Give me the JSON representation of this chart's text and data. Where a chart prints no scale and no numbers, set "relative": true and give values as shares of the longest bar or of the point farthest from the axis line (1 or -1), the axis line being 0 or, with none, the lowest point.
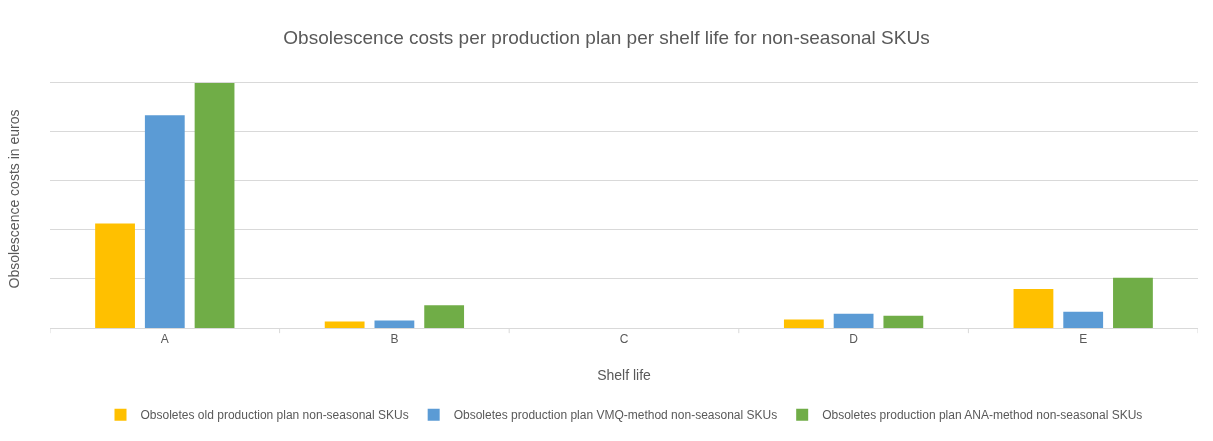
{
  "chart_data": {
    "type": "bar",
    "relative": true,
    "title": "Obsolescence costs per production plan per shelf life for non-seasonal SKUs",
    "xlabel": "Shelf life",
    "ylabel": "Obsolescence costs in euros",
    "categories": [
      "A",
      "B",
      "C",
      "D",
      "E"
    ],
    "series": [
      {
        "name": "Obsoletes old production plan non-seasonal SKUs",
        "color": "#ffc000",
        "values": [
          0.426,
          0.027,
          0,
          0.035,
          0.159
        ]
      },
      {
        "name": "Obsoletes production plan VMQ-method non-seasonal SKUs",
        "color": "#5b9bd5",
        "values": [
          0.868,
          0.031,
          0,
          0.058,
          0.066
        ]
      },
      {
        "name": "Obsoletes production plan ANA-method non-seasonal SKUs",
        "color": "#70ad47",
        "values": [
          1,
          0.093,
          0,
          0.05,
          0.205
        ]
      }
    ],
    "grid": "y",
    "legend": "bottom"
  }
}
